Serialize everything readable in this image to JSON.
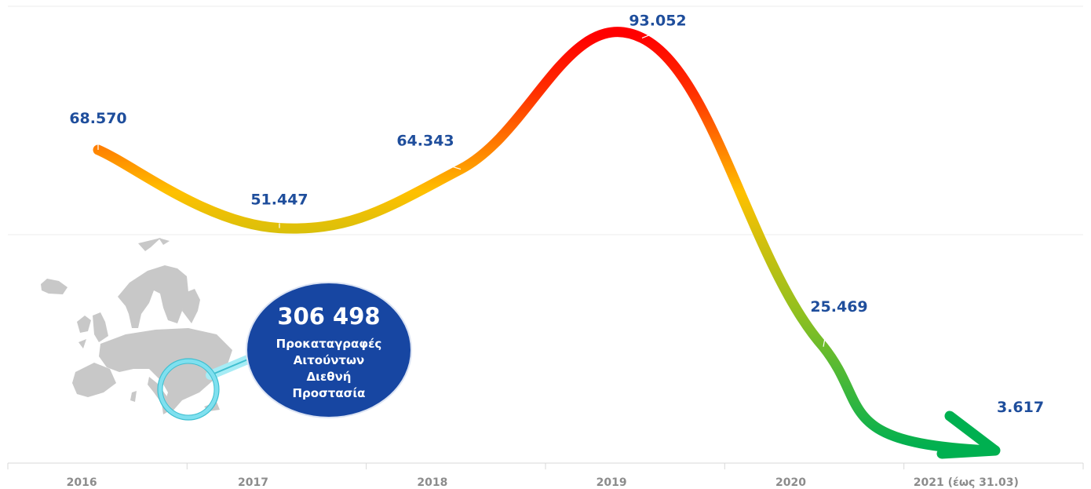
{
  "chart_data": {
    "type": "line",
    "categories": [
      "2016",
      "2017",
      "2018",
      "2019",
      "2020",
      "2021 (έως 31.03)"
    ],
    "values": [
      68570,
      51447,
      64343,
      93052,
      25469,
      3617
    ],
    "value_labels": [
      "68.570",
      "51.447",
      "64.343",
      "93.052",
      "25.469",
      "3.617"
    ],
    "title": "",
    "xlabel": "",
    "ylabel": "",
    "ylim": [
      0,
      100000
    ],
    "grid": true,
    "line_gradient": [
      "#00b050",
      "#92c01f",
      "#ffc000",
      "#ff0000"
    ],
    "end_marker": "arrow"
  },
  "callout": {
    "total": "306 498",
    "lines": [
      "Προκαταγραφές",
      "Αιτούντων",
      "Διεθνή",
      "Προστασία"
    ],
    "fill_color": "#1746a2",
    "lens_color": "#7fe0ef",
    "map_color": "#c8c8c8"
  },
  "colors": {
    "value_label": "#1f4e9c",
    "tick_label": "#8c8c8c",
    "grid": "#eeeeee"
  },
  "icons": [
    "europe-map-icon",
    "magnifier-icon"
  ]
}
